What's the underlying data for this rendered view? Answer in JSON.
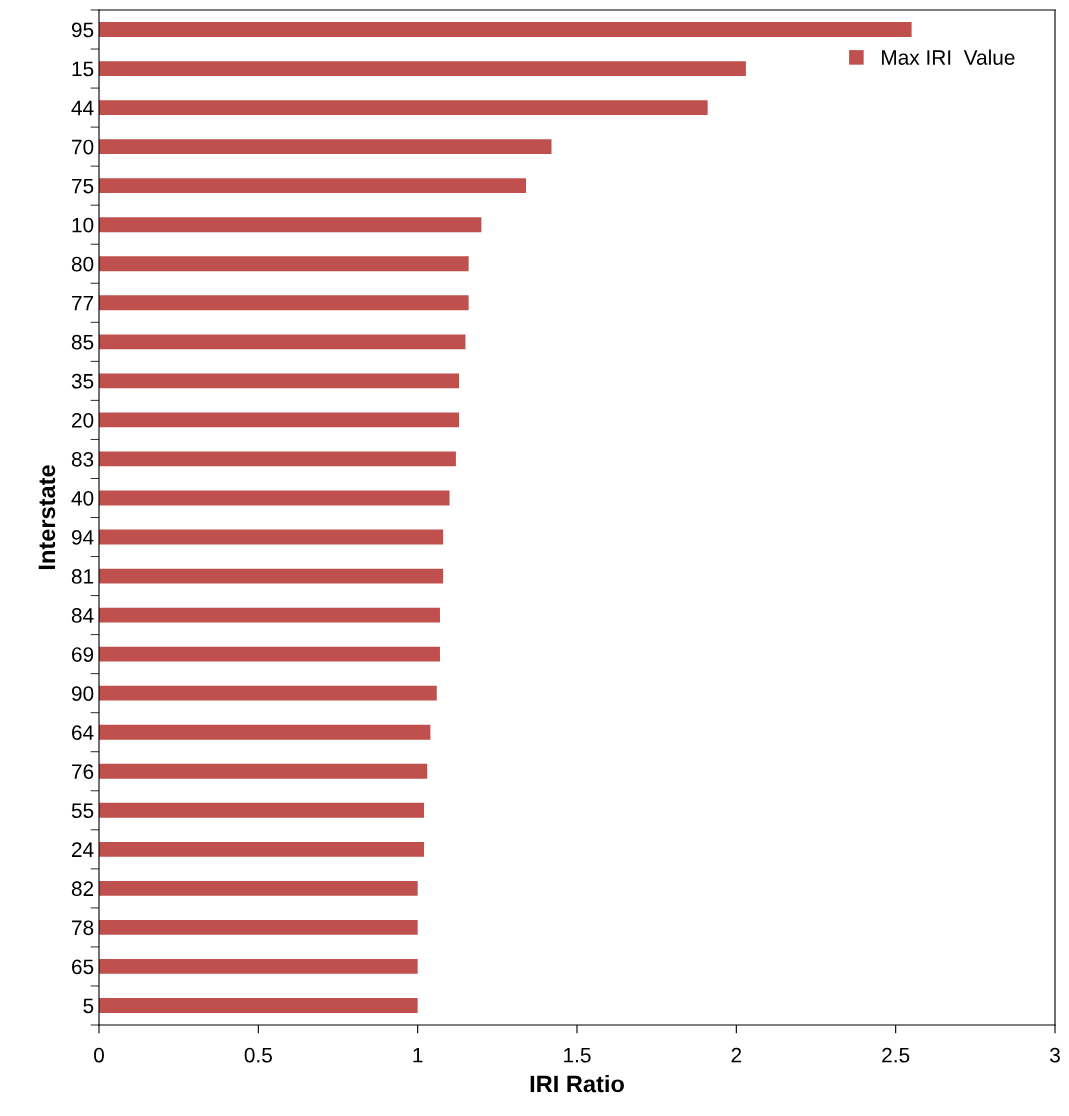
{
  "chart_data": {
    "type": "bar",
    "orientation": "horizontal",
    "xlabel": "IRI Ratio",
    "ylabel": "Interstate",
    "categories": [
      "95",
      "15",
      "44",
      "70",
      "75",
      "10",
      "80",
      "77",
      "85",
      "35",
      "20",
      "83",
      "40",
      "94",
      "81",
      "84",
      "69",
      "90",
      "64",
      "76",
      "55",
      "24",
      "82",
      "78",
      "65",
      "5"
    ],
    "series": [
      {
        "name": "Max IRI  Value",
        "color": "#c0504d",
        "values": [
          2.55,
          2.03,
          1.91,
          1.42,
          1.34,
          1.2,
          1.16,
          1.16,
          1.15,
          1.13,
          1.13,
          1.12,
          1.1,
          1.08,
          1.08,
          1.07,
          1.07,
          1.06,
          1.04,
          1.03,
          1.02,
          1.02,
          1.0,
          1.0,
          1.0,
          1.0
        ]
      }
    ],
    "xlim": [
      0,
      3
    ],
    "xticks": [
      0,
      0.5,
      1,
      1.5,
      2,
      2.5,
      3
    ],
    "grid": false,
    "legend": "top right"
  }
}
